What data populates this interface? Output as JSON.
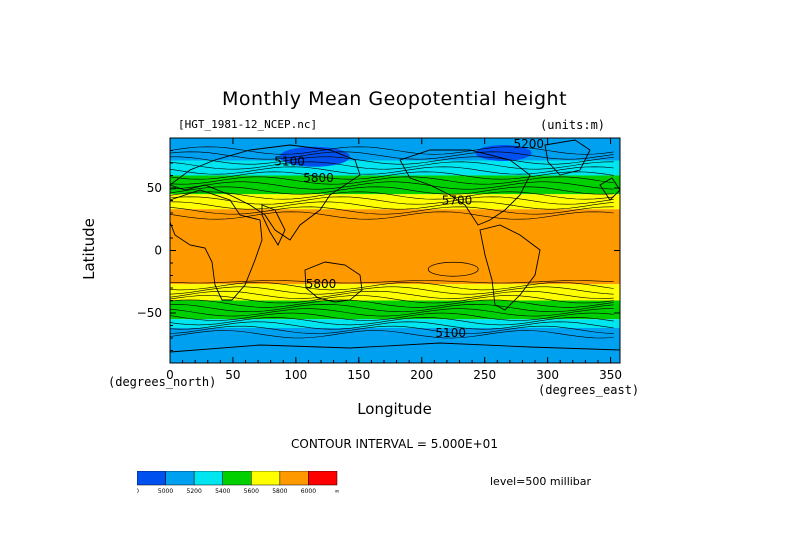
{
  "chart_data": {
    "type": "contour-map",
    "title": "Monthly Mean Geopotential height",
    "file_label": "[HGT_1981-12_NCEP.nc]",
    "units_label": "(units:m)",
    "xlabel": "Longitude",
    "ylabel": "Latitude",
    "x_units_left": "(degrees_north)",
    "x_units_right": "(degrees_east)",
    "xlim": [
      0,
      357.5
    ],
    "ylim": [
      -90,
      90
    ],
    "x_ticks": [
      0,
      50,
      100,
      150,
      200,
      250,
      300,
      350
    ],
    "y_ticks": [
      50,
      0,
      -50
    ],
    "y_tick_labels": [
      "50",
      "0",
      "−50"
    ],
    "contour_interval_label": "CONTOUR INTERVAL = 5.000E+01",
    "level_label": "level=500 millibar",
    "contour_labels": [
      {
        "text": "5100",
        "lon": 95,
        "lat": 68
      },
      {
        "text": "5200",
        "lon": 285,
        "lat": 82
      },
      {
        "text": "5700",
        "lon": 228,
        "lat": 37
      },
      {
        "text": "5800",
        "lon": 118,
        "lat": 55
      },
      {
        "text": "5800",
        "lon": 120,
        "lat": -30
      },
      {
        "text": "5100",
        "lon": 223,
        "lat": -69
      }
    ],
    "legend": {
      "levels": [
        "0",
        "5000",
        "5200",
        "5400",
        "5600",
        "5800",
        "6000",
        "∞"
      ],
      "colors": [
        "#0050f0",
        "#00a0f0",
        "#00e6f0",
        "#00d000",
        "#ffff00",
        "#ff9900",
        "#ff0000"
      ]
    },
    "field_bands": [
      {
        "lat_from": 90,
        "lat_to": 72,
        "color": "#00a0f0"
      },
      {
        "lat_from": 72,
        "lat_to": 60,
        "color": "#00e6f0"
      },
      {
        "lat_from": 60,
        "lat_to": 45,
        "color": "#00d000"
      },
      {
        "lat_from": 45,
        "lat_to": 33,
        "color": "#ffff00"
      },
      {
        "lat_from": 33,
        "lat_to": -27,
        "color": "#ff9900"
      },
      {
        "lat_from": -27,
        "lat_to": -40,
        "color": "#ffff00"
      },
      {
        "lat_from": -40,
        "lat_to": -55,
        "color": "#00d000"
      },
      {
        "lat_from": -55,
        "lat_to": -62,
        "color": "#00e6f0"
      },
      {
        "lat_from": -62,
        "lat_to": -90,
        "color": "#00a0f0"
      }
    ]
  }
}
